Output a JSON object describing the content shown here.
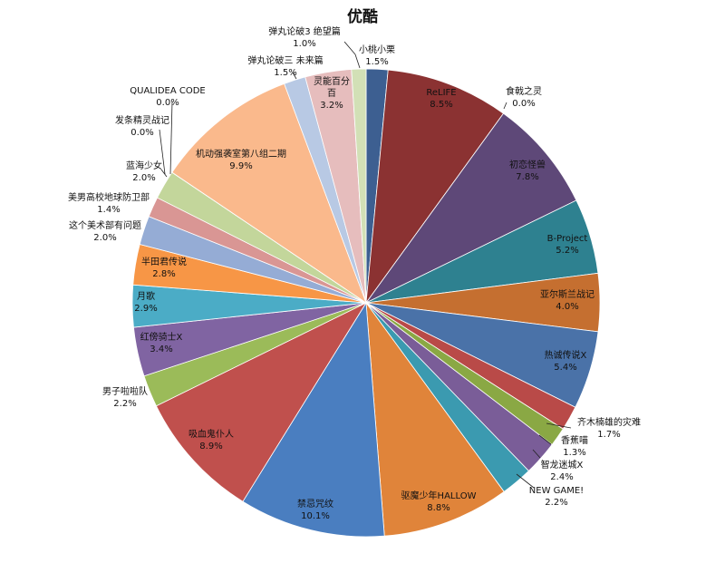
{
  "chart_data": {
    "type": "pie",
    "title": "优酷",
    "start_angle_deg": 0,
    "direction": "clockwise",
    "slices": [
      {
        "label": "小桃小栗",
        "value": 1.5,
        "pct": "1.5%",
        "color": "#3d5f91"
      },
      {
        "label": "ReLIFE",
        "value": 8.5,
        "pct": "8.5%",
        "color": "#8b3232"
      },
      {
        "label": "食戟之灵",
        "value": 0.0,
        "pct": "0.0%",
        "color": "#7a9a3a"
      },
      {
        "label": "初恋怪兽",
        "value": 7.8,
        "pct": "7.8%",
        "color": "#5e4878"
      },
      {
        "label": "B-Project",
        "value": 5.2,
        "pct": "5.2%",
        "color": "#2e8190"
      },
      {
        "label": "亚尔斯兰战记",
        "value": 4.0,
        "pct": "4.0%",
        "color": "#c56f30"
      },
      {
        "label": "热诚传说X",
        "value": 5.4,
        "pct": "5.4%",
        "color": "#4a72a8"
      },
      {
        "label": "齐木楠雄的灾难",
        "value": 1.7,
        "pct": "1.7%",
        "color": "#b94a48"
      },
      {
        "label": "香蕉喵",
        "value": 1.3,
        "pct": "1.3%",
        "color": "#8aa844"
      },
      {
        "label": "智龙迷城X",
        "value": 2.4,
        "pct": "2.4%",
        "color": "#7a5d98"
      },
      {
        "label": "NEW GAME!",
        "value": 2.2,
        "pct": "2.2%",
        "color": "#3b9ab0"
      },
      {
        "label": "驱魔少年HALLOW",
        "value": 8.8,
        "pct": "8.8%",
        "color": "#e0843a"
      },
      {
        "label": "禁忌咒纹",
        "value": 10.1,
        "pct": "10.1%",
        "color": "#4a7ec0"
      },
      {
        "label": "吸血鬼仆人",
        "value": 8.9,
        "pct": "8.9%",
        "color": "#c0504d"
      },
      {
        "label": "男子啦啦队",
        "value": 2.2,
        "pct": "2.2%",
        "color": "#9bbb59"
      },
      {
        "label": "红傍骑士X",
        "value": 3.4,
        "pct": "3.4%",
        "color": "#8064a2"
      },
      {
        "label": "月歌",
        "value": 2.9,
        "pct": "2.9%",
        "color": "#4bacc6"
      },
      {
        "label": "半田君传说",
        "value": 2.8,
        "pct": "2.8%",
        "color": "#f79646"
      },
      {
        "label": "这个美术部有问题",
        "value": 2.0,
        "pct": "2.0%",
        "color": "#95acd5"
      },
      {
        "label": "美男高校地球防卫部",
        "value": 1.4,
        "pct": "1.4%",
        "color": "#d99694"
      },
      {
        "label": "蓝海少女",
        "value": 2.0,
        "pct": "2.0%",
        "color": "#c3d69b"
      },
      {
        "label": "发条精灵战记",
        "value": 0.0,
        "pct": "0.0%",
        "color": "#b2a1c7"
      },
      {
        "label": "QUALIDEA CODE",
        "value": 0.0,
        "pct": "0.0%",
        "color": "#93cddd"
      },
      {
        "label": "机动强袭室第八组二期",
        "value": 9.9,
        "pct": "9.9%",
        "color": "#fab98c"
      },
      {
        "label": "弹丸论破三 未来篇",
        "value": 1.5,
        "pct": "1.5%",
        "color": "#b8c9e4"
      },
      {
        "label": "灵能百分百",
        "value": 3.2,
        "pct": "3.2%",
        "color": "#e6bdbd"
      },
      {
        "label": "弹丸论破3 绝望篇",
        "value": 1.0,
        "pct": "1.0%",
        "color": "#d2e0b6"
      }
    ]
  }
}
